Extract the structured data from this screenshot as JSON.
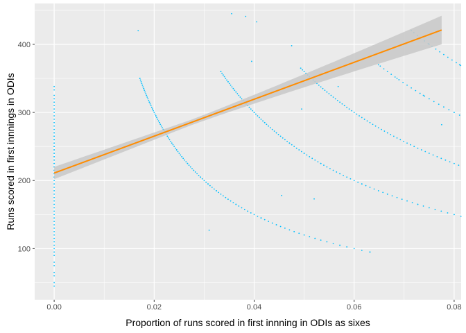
{
  "chart_data": {
    "type": "scatter",
    "title": "",
    "xlabel": "Proportion of runs scored in first innning in ODIs as sixes",
    "ylabel": "Runs scored in first innnings in ODIs",
    "xlim": [
      -0.0039,
      0.0814
    ],
    "ylim": [
      25,
      460
    ],
    "x_ticks": [
      0.0,
      0.02,
      0.04,
      0.06,
      0.08
    ],
    "x_tick_labels": [
      "0.00",
      "0.02",
      "0.04",
      "0.06",
      "0.08"
    ],
    "y_ticks": [
      100,
      200,
      300,
      400
    ],
    "y_tick_labels": [
      "100",
      "200",
      "300",
      "400"
    ],
    "grid": true,
    "legend": "none",
    "colors": {
      "panel": "#EBEBEB",
      "grid": "#FFFFFF",
      "points": "#00BFFF",
      "fit_line": "#FF8C00",
      "confidence_band": "#C8C8C8"
    },
    "points_description_counts": "sixes 0..9 per innings; runs 40..450",
    "points": {
      "zero_sixes_runs": [
        45,
        60,
        75,
        90,
        100,
        110,
        120,
        130,
        140,
        150,
        160,
        170,
        180,
        190,
        200,
        205,
        210,
        215,
        220,
        225,
        230,
        235,
        240,
        245,
        250,
        255,
        260,
        265,
        270,
        280,
        290,
        300,
        310,
        320,
        333
      ],
      "sixes_counts": [
        1,
        2,
        3,
        4,
        5,
        6,
        7,
        8,
        9
      ],
      "curve_runs": [
        [
          95,
          105,
          115,
          125,
          135,
          145,
          155,
          165,
          175,
          185,
          195,
          205,
          215,
          225,
          235,
          245,
          255,
          265,
          275,
          285,
          295,
          305,
          315,
          325,
          335,
          350
        ],
        [
          80,
          90,
          105,
          120,
          135,
          150,
          165,
          180,
          195,
          210,
          225,
          240,
          255,
          270,
          285,
          300,
          315,
          330,
          345,
          360
        ],
        [
          75,
          90,
          110,
          130,
          150,
          170,
          190,
          210,
          230,
          250,
          270,
          290,
          310,
          330,
          350,
          365
        ],
        [
          80,
          100,
          125,
          150,
          175,
          200,
          225,
          250,
          275,
          300,
          325,
          350,
          370
        ],
        [
          105,
          130,
          160,
          190,
          220,
          250,
          280,
          310,
          340,
          370,
          400,
          420
        ],
        [
          125,
          160,
          195,
          230,
          265,
          300,
          335,
          370,
          405
        ],
        [
          150,
          190,
          230,
          270,
          310,
          350,
          390,
          430
        ],
        [
          175,
          220,
          265,
          310,
          355,
          400,
          445
        ],
        [
          200,
          250,
          300,
          350,
          400,
          440
        ]
      ],
      "outliers": [
        {
          "x": 0.0775,
          "y": 282
        },
        {
          "x": 0.052,
          "y": 173
        },
        {
          "x": 0.0455,
          "y": 178
        },
        {
          "x": 0.0475,
          "y": 398
        },
        {
          "x": 0.0395,
          "y": 375
        },
        {
          "x": 0.0383,
          "y": 441
        },
        {
          "x": 0.0405,
          "y": 433
        },
        {
          "x": 0.0568,
          "y": 338
        },
        {
          "x": 0.0168,
          "y": 420
        },
        {
          "x": 0.0495,
          "y": 305
        },
        {
          "x": 0.031,
          "y": 127
        },
        {
          "x": 0.0355,
          "y": 445
        }
      ]
    },
    "fit": {
      "method": "linear",
      "x_start": 0.0,
      "x_end": 0.0775,
      "y_start": 211,
      "y_end": 421,
      "band_half_width_start": 9,
      "band_half_width_mid": 4,
      "band_half_width_end": 21
    }
  }
}
